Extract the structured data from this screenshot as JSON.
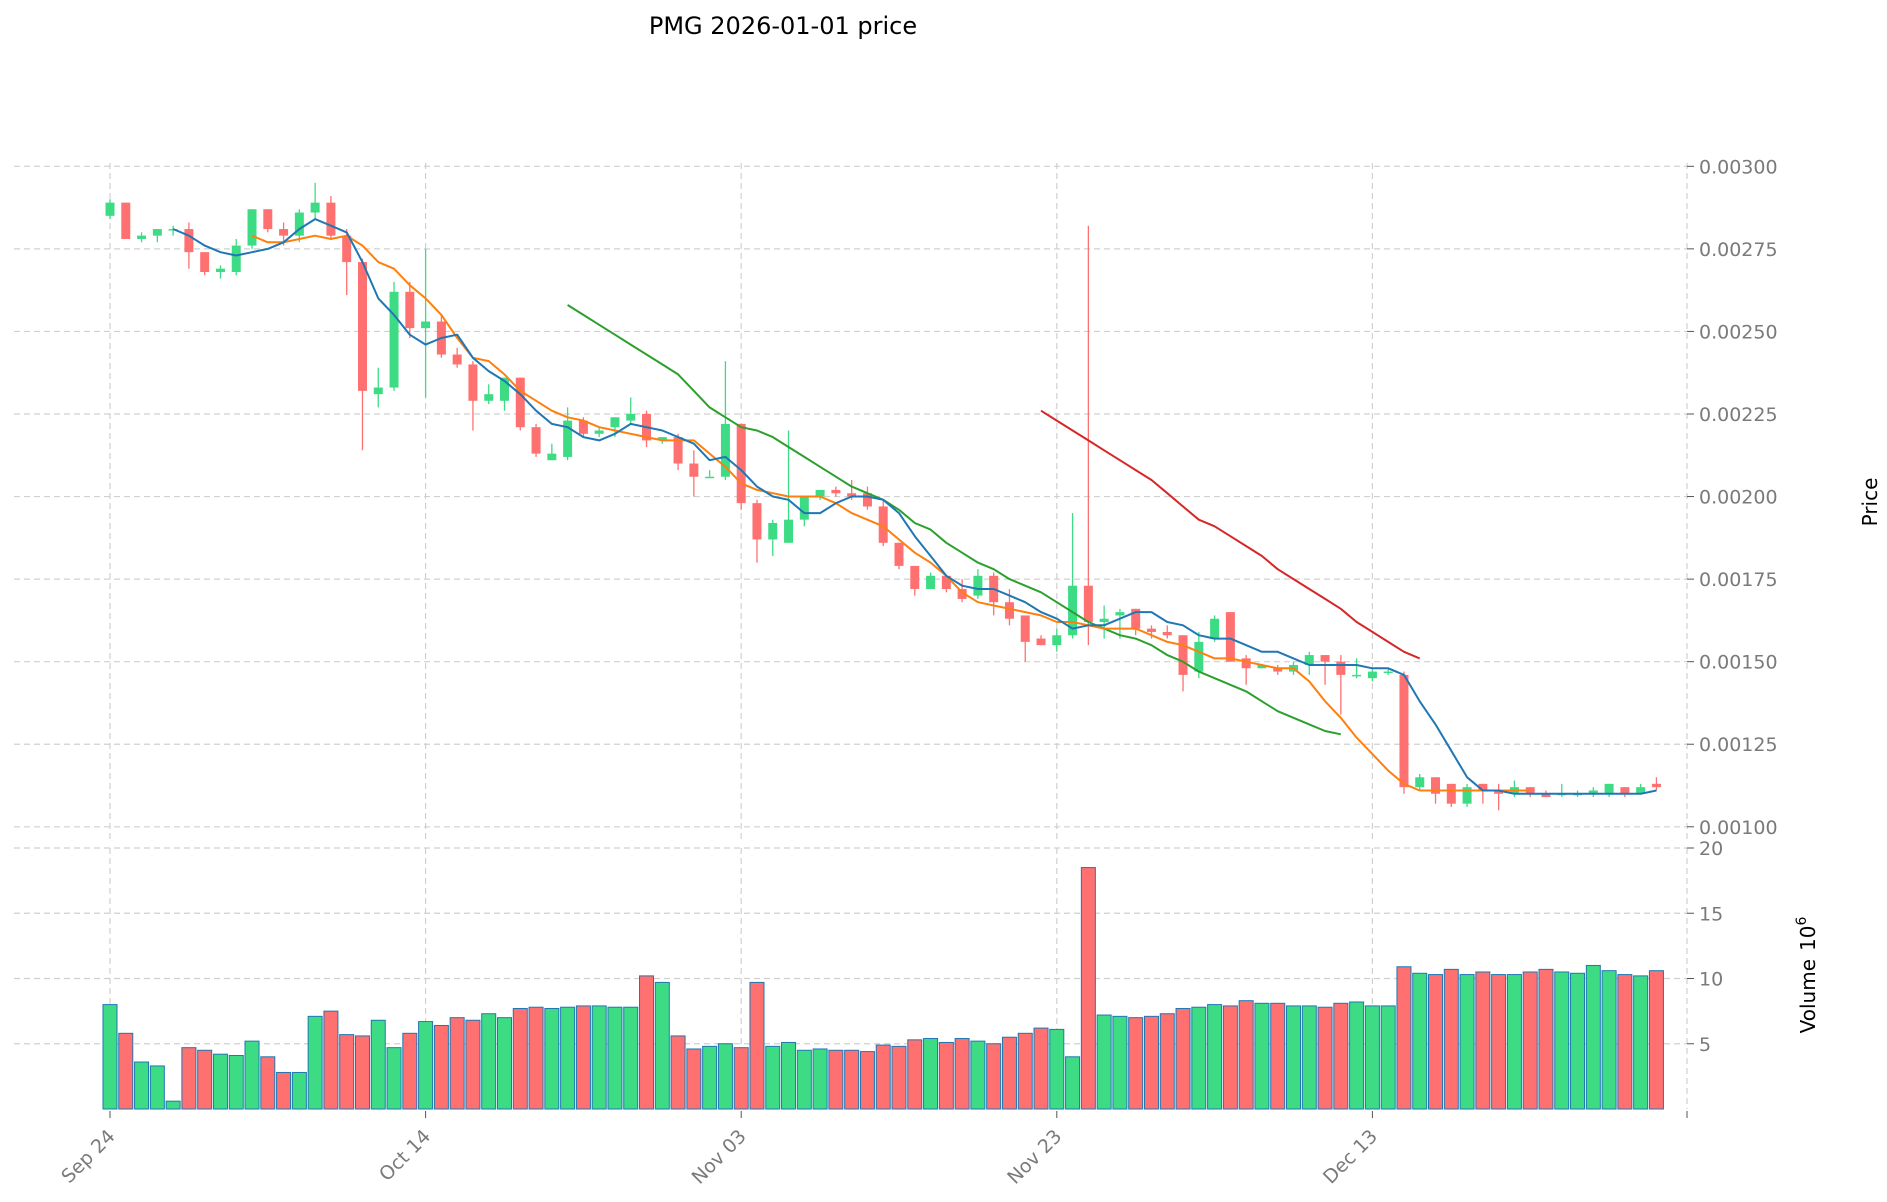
{
  "chart_data": {
    "type": "candlestick",
    "title": "PMG  2026-01-01  price",
    "ylabel_price": "Price",
    "ylabel_volume": "Volume",
    "volume_exponent": "6",
    "price_ylim": [
      0.00096,
      0.00301
    ],
    "volume_ylim": [
      0,
      20
    ],
    "price_ticks": [
      "0.00100",
      "0.00125",
      "0.00150",
      "0.00175",
      "0.00200",
      "0.00225",
      "0.00250",
      "0.00275",
      "0.00300"
    ],
    "price_tick_values": [
      0.001,
      0.00125,
      0.0015,
      0.00175,
      0.002,
      0.00225,
      0.0025,
      0.00275,
      0.003
    ],
    "volume_ticks": [
      "5",
      "10",
      "15",
      "20"
    ],
    "volume_tick_values": [
      5,
      10,
      15,
      20
    ],
    "x_ticks": [
      {
        "label": "Sep 24",
        "index": 0
      },
      {
        "label": "Oct 14",
        "index": 20
      },
      {
        "label": "Nov 03",
        "index": 40
      },
      {
        "label": "Nov 23",
        "index": 60
      },
      {
        "label": "Dec 13",
        "index": 80
      }
    ],
    "n_bars": 99,
    "colors": {
      "up": "#3ddc84",
      "down": "#ff7070",
      "volume_edge": "#1f77b4",
      "ma_blue": "#1f77b4",
      "ma_orange": "#ff7f0e",
      "ma_green": "#2ca02c",
      "ma_red": "#d62728"
    },
    "candles": [
      [
        0.00285,
        0.0029,
        0.00284,
        0.00289
      ],
      [
        0.00289,
        0.00289,
        0.00278,
        0.00278
      ],
      [
        0.00278,
        0.0028,
        0.00277,
        0.00279
      ],
      [
        0.00279,
        0.00281,
        0.00277,
        0.00281
      ],
      [
        0.00281,
        0.00282,
        0.00279,
        0.00281
      ],
      [
        0.00281,
        0.00283,
        0.00269,
        0.00274
      ],
      [
        0.00274,
        0.00274,
        0.00267,
        0.00268
      ],
      [
        0.00268,
        0.0027,
        0.00266,
        0.00269
      ],
      [
        0.00268,
        0.00278,
        0.00267,
        0.00276
      ],
      [
        0.00276,
        0.00287,
        0.00275,
        0.00287
      ],
      [
        0.00287,
        0.00287,
        0.0028,
        0.00281
      ],
      [
        0.00281,
        0.00283,
        0.00276,
        0.00279
      ],
      [
        0.00279,
        0.00287,
        0.00277,
        0.00286
      ],
      [
        0.00286,
        0.00295,
        0.00284,
        0.00289
      ],
      [
        0.00289,
        0.00291,
        0.00278,
        0.00279
      ],
      [
        0.00279,
        0.00281,
        0.00261,
        0.00271
      ],
      [
        0.00271,
        0.00272,
        0.00214,
        0.00232
      ],
      [
        0.00231,
        0.00239,
        0.00227,
        0.00233
      ],
      [
        0.00233,
        0.00265,
        0.00232,
        0.00262
      ],
      [
        0.00262,
        0.00265,
        0.00248,
        0.00251
      ],
      [
        0.00251,
        0.00275,
        0.0023,
        0.00253
      ],
      [
        0.00253,
        0.00255,
        0.00242,
        0.00243
      ],
      [
        0.00243,
        0.00245,
        0.00239,
        0.0024
      ],
      [
        0.0024,
        0.00241,
        0.0022,
        0.00229
      ],
      [
        0.00229,
        0.00234,
        0.00228,
        0.00231
      ],
      [
        0.00229,
        0.00236,
        0.00226,
        0.00236
      ],
      [
        0.00236,
        0.00236,
        0.0022,
        0.00221
      ],
      [
        0.00221,
        0.00222,
        0.00212,
        0.00213
      ],
      [
        0.00211,
        0.00216,
        0.00211,
        0.00213
      ],
      [
        0.00212,
        0.00227,
        0.00211,
        0.00223
      ],
      [
        0.00223,
        0.00224,
        0.00218,
        0.00219
      ],
      [
        0.00219,
        0.00221,
        0.00218,
        0.0022
      ],
      [
        0.00221,
        0.00224,
        0.00218,
        0.00224
      ],
      [
        0.00223,
        0.0023,
        0.00222,
        0.00225
      ],
      [
        0.00225,
        0.00226,
        0.00215,
        0.00217
      ],
      [
        0.00217,
        0.00218,
        0.00216,
        0.00218
      ],
      [
        0.00218,
        0.00219,
        0.00208,
        0.0021
      ],
      [
        0.0021,
        0.00214,
        0.002,
        0.00206
      ],
      [
        0.00206,
        0.00208,
        0.00206,
        0.00206
      ],
      [
        0.00206,
        0.00241,
        0.00205,
        0.00222
      ],
      [
        0.00222,
        0.00222,
        0.00196,
        0.00198
      ],
      [
        0.00198,
        0.00199,
        0.0018,
        0.00187
      ],
      [
        0.00187,
        0.00193,
        0.00182,
        0.00192
      ],
      [
        0.00186,
        0.0022,
        0.00186,
        0.00193
      ],
      [
        0.00193,
        0.002,
        0.00191,
        0.002
      ],
      [
        0.002,
        0.00202,
        0.00199,
        0.00202
      ],
      [
        0.00202,
        0.00203,
        0.002,
        0.00201
      ],
      [
        0.00201,
        0.00205,
        0.00199,
        0.002
      ],
      [
        0.00201,
        0.00203,
        0.00196,
        0.00197
      ],
      [
        0.00197,
        0.00199,
        0.00185,
        0.00186
      ],
      [
        0.00186,
        0.00186,
        0.00178,
        0.00179
      ],
      [
        0.00179,
        0.00179,
        0.0017,
        0.00172
      ],
      [
        0.00172,
        0.00177,
        0.00172,
        0.00176
      ],
      [
        0.00176,
        0.00176,
        0.00171,
        0.00172
      ],
      [
        0.00172,
        0.00175,
        0.00168,
        0.00169
      ],
      [
        0.0017,
        0.00178,
        0.00169,
        0.00176
      ],
      [
        0.00176,
        0.00177,
        0.00164,
        0.00168
      ],
      [
        0.00168,
        0.00172,
        0.00161,
        0.00163
      ],
      [
        0.00164,
        0.00164,
        0.0015,
        0.00156
      ],
      [
        0.00157,
        0.00158,
        0.00155,
        0.00155
      ],
      [
        0.00155,
        0.0016,
        0.00153,
        0.00158
      ],
      [
        0.00158,
        0.00195,
        0.00157,
        0.00173
      ],
      [
        0.00173,
        0.00282,
        0.00155,
        0.00162
      ],
      [
        0.00162,
        0.00167,
        0.00157,
        0.00163
      ],
      [
        0.00164,
        0.00166,
        0.00157,
        0.00165
      ],
      [
        0.00166,
        0.00166,
        0.00158,
        0.0016
      ],
      [
        0.0016,
        0.00161,
        0.00157,
        0.00159
      ],
      [
        0.00159,
        0.00161,
        0.00157,
        0.00158
      ],
      [
        0.00158,
        0.00158,
        0.00141,
        0.00146
      ],
      [
        0.00147,
        0.00159,
        0.00145,
        0.00156
      ],
      [
        0.00157,
        0.00164,
        0.00156,
        0.00163
      ],
      [
        0.00165,
        0.00165,
        0.0015,
        0.0015
      ],
      [
        0.00151,
        0.00152,
        0.00143,
        0.00148
      ],
      [
        0.00148,
        0.00149,
        0.00148,
        0.00149
      ],
      [
        0.00148,
        0.00149,
        0.00146,
        0.00147
      ],
      [
        0.00147,
        0.0015,
        0.00146,
        0.00149
      ],
      [
        0.00149,
        0.00153,
        0.00146,
        0.00152
      ],
      [
        0.00152,
        0.00152,
        0.00143,
        0.0015
      ],
      [
        0.0015,
        0.00152,
        0.00134,
        0.00146
      ],
      [
        0.00146,
        0.00151,
        0.00145,
        0.00146
      ],
      [
        0.00145,
        0.00148,
        0.00144,
        0.00147
      ],
      [
        0.00147,
        0.00148,
        0.00146,
        0.00147
      ],
      [
        0.00146,
        0.00147,
        0.0011,
        0.00112
      ],
      [
        0.00112,
        0.00116,
        0.00111,
        0.00115
      ],
      [
        0.00115,
        0.00115,
        0.00107,
        0.0011
      ],
      [
        0.00113,
        0.00113,
        0.00106,
        0.00107
      ],
      [
        0.00107,
        0.00113,
        0.00106,
        0.00112
      ],
      [
        0.00113,
        0.00113,
        0.00107,
        0.00111
      ],
      [
        0.00111,
        0.00113,
        0.00105,
        0.0011
      ],
      [
        0.0011,
        0.00114,
        0.00109,
        0.00112
      ],
      [
        0.00112,
        0.00112,
        0.00109,
        0.0011
      ],
      [
        0.0011,
        0.00111,
        0.00109,
        0.00109
      ],
      [
        0.0011,
        0.00113,
        0.00109,
        0.0011
      ],
      [
        0.0011,
        0.00111,
        0.00109,
        0.0011
      ],
      [
        0.0011,
        0.00112,
        0.00109,
        0.00111
      ],
      [
        0.0011,
        0.00113,
        0.00109,
        0.00113
      ],
      [
        0.00112,
        0.00112,
        0.00109,
        0.0011
      ],
      [
        0.0011,
        0.00113,
        0.0011,
        0.00112
      ],
      [
        0.00113,
        0.00115,
        0.00111,
        0.00112
      ]
    ],
    "volume": [
      8.0,
      5.8,
      3.6,
      3.3,
      0.6,
      4.7,
      4.5,
      4.2,
      4.1,
      5.2,
      4.0,
      2.8,
      2.8,
      7.1,
      7.5,
      5.7,
      5.6,
      6.8,
      4.7,
      5.8,
      6.7,
      6.4,
      7.0,
      6.8,
      7.3,
      7.0,
      7.7,
      7.8,
      7.7,
      7.8,
      7.9,
      7.9,
      7.8,
      7.8,
      10.2,
      9.7,
      5.6,
      4.6,
      4.8,
      5.0,
      4.7,
      9.7,
      4.8,
      5.1,
      4.5,
      4.6,
      4.5,
      4.5,
      4.4,
      4.9,
      4.8,
      5.3,
      5.4,
      5.1,
      5.4,
      5.2,
      5.0,
      5.5,
      5.8,
      6.2,
      6.1,
      4.0,
      18.5,
      7.2,
      7.1,
      7.0,
      7.1,
      7.3,
      7.7,
      7.8,
      8.0,
      7.9,
      8.3,
      8.1,
      8.1,
      7.9,
      7.9,
      7.8,
      8.1,
      8.2,
      7.9,
      7.9,
      10.9,
      10.4,
      10.3,
      10.7,
      10.3,
      10.5,
      10.3,
      10.3,
      10.5,
      10.7,
      10.5,
      10.4,
      11.0,
      10.6,
      10.3,
      10.2,
      10.6
    ],
    "ma_blue": {
      "start": 4,
      "values": [
        0.00281,
        0.00279,
        0.00276,
        0.00274,
        0.00273,
        0.00274,
        0.00275,
        0.00277,
        0.00281,
        0.00284,
        0.00282,
        0.0028,
        0.00271,
        0.0026,
        0.00255,
        0.00249,
        0.00246,
        0.00248,
        0.00249,
        0.00242,
        0.00238,
        0.00235,
        0.00231,
        0.00226,
        0.00222,
        0.00221,
        0.00218,
        0.00217,
        0.00219,
        0.00222,
        0.00221,
        0.0022,
        0.00218,
        0.00216,
        0.00211,
        0.00212,
        0.00208,
        0.00203,
        0.002,
        0.00199,
        0.00195,
        0.00195,
        0.00198,
        0.002,
        0.002,
        0.00199,
        0.00195,
        0.00188,
        0.00182,
        0.00176,
        0.00173,
        0.00172,
        0.00172,
        0.0017,
        0.00168,
        0.00165,
        0.00163,
        0.0016,
        0.00161,
        0.00161,
        0.00163,
        0.00165,
        0.00165,
        0.00162,
        0.00161,
        0.00158,
        0.00157,
        0.00157,
        0.00155,
        0.00153,
        0.00153,
        0.00151,
        0.00149,
        0.00149,
        0.00149,
        0.00149,
        0.00148,
        0.00148,
        0.00146,
        0.00138,
        0.00131,
        0.00123,
        0.00115,
        0.00111,
        0.00111,
        0.0011,
        0.0011,
        0.0011,
        0.0011,
        0.0011,
        0.0011,
        0.0011,
        0.0011,
        0.0011,
        0.00111
      ]
    },
    "ma_orange": {
      "start": 9,
      "values": [
        0.00279,
        0.00277,
        0.00277,
        0.00278,
        0.00279,
        0.00278,
        0.00279,
        0.00276,
        0.00271,
        0.00269,
        0.00264,
        0.0026,
        0.00255,
        0.00248,
        0.00242,
        0.00241,
        0.00237,
        0.00232,
        0.00229,
        0.00226,
        0.00224,
        0.00223,
        0.00221,
        0.0022,
        0.00219,
        0.00218,
        0.00217,
        0.00217,
        0.00217,
        0.00213,
        0.00209,
        0.00204,
        0.00202,
        0.00201,
        0.002,
        0.002,
        0.002,
        0.00198,
        0.00195,
        0.00193,
        0.00191,
        0.00187,
        0.00183,
        0.0018,
        0.00176,
        0.00171,
        0.00168,
        0.00167,
        0.00166,
        0.00165,
        0.00164,
        0.00162,
        0.00162,
        0.00161,
        0.0016,
        0.0016,
        0.0016,
        0.00158,
        0.00156,
        0.00155,
        0.00153,
        0.00151,
        0.00151,
        0.0015,
        0.00149,
        0.00148,
        0.00148,
        0.00144,
        0.00138,
        0.00133,
        0.00127,
        0.00122,
        0.00117,
        0.00113,
        0.00111,
        0.00111,
        0.00111,
        0.00111,
        0.00111,
        0.00111,
        0.00111,
        0.00111
      ]
    },
    "ma_green": {
      "start": 29,
      "values": [
        0.00258,
        0.00255,
        0.00252,
        0.00249,
        0.00246,
        0.00243,
        0.0024,
        0.00237,
        0.00232,
        0.00227,
        0.00224,
        0.00221,
        0.0022,
        0.00218,
        0.00215,
        0.00212,
        0.00209,
        0.00206,
        0.00203,
        0.00201,
        0.00199,
        0.00196,
        0.00192,
        0.0019,
        0.00186,
        0.00183,
        0.0018,
        0.00178,
        0.00175,
        0.00173,
        0.00171,
        0.00168,
        0.00165,
        0.00162,
        0.0016,
        0.00158,
        0.00157,
        0.00155,
        0.00152,
        0.0015,
        0.00147,
        0.00145,
        0.00143,
        0.00141,
        0.00138,
        0.00135,
        0.00133,
        0.00131,
        0.00129,
        0.00128
      ]
    },
    "ma_red": {
      "start": 59,
      "values": [
        0.00226,
        0.00223,
        0.0022,
        0.00217,
        0.00214,
        0.00211,
        0.00208,
        0.00205,
        0.00201,
        0.00197,
        0.00193,
        0.00191,
        0.00188,
        0.00185,
        0.00182,
        0.00178,
        0.00175,
        0.00172,
        0.00169,
        0.00166,
        0.00162,
        0.00159,
        0.00156,
        0.00153,
        0.00151
      ]
    }
  }
}
